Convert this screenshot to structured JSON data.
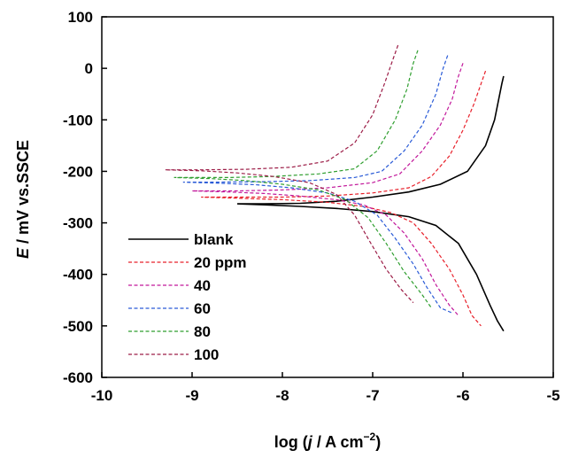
{
  "chart_data": {
    "type": "line",
    "title": "",
    "xlabel": {
      "prefix": "log (",
      "italic": "j",
      "mid": " / A cm",
      "sup": "−2",
      "suffix": ")"
    },
    "ylabel": {
      "italic": "E",
      "rest": " / mV vs.SSCE"
    },
    "xlim": [
      -10,
      -5
    ],
    "ylim": [
      -600,
      100
    ],
    "xticks": [
      "-10",
      "-9",
      "-8",
      "-7",
      "-6",
      "-5"
    ],
    "yticks": [
      "100",
      "0",
      "-100",
      "-200",
      "-300",
      "-400",
      "-500",
      "-600"
    ],
    "grid": false,
    "legend_position": "lower-left",
    "series": [
      {
        "name": "blank",
        "color": "#000000",
        "dash": "solid",
        "points": [
          [
            -5.55,
            -15
          ],
          [
            -5.57,
            -30
          ],
          [
            -5.65,
            -100
          ],
          [
            -5.75,
            -150
          ],
          [
            -5.95,
            -200
          ],
          [
            -6.25,
            -225
          ],
          [
            -6.6,
            -240
          ],
          [
            -7.0,
            -250
          ],
          [
            -7.4,
            -258
          ],
          [
            -7.8,
            -262
          ],
          [
            -8.2,
            -263
          ],
          [
            -8.5,
            -263
          ],
          [
            -8.2,
            -265
          ],
          [
            -7.8,
            -268
          ],
          [
            -7.4,
            -272
          ],
          [
            -7.0,
            -278
          ],
          [
            -6.6,
            -288
          ],
          [
            -6.3,
            -305
          ],
          [
            -6.05,
            -340
          ],
          [
            -5.85,
            -400
          ],
          [
            -5.7,
            -460
          ],
          [
            -5.62,
            -490
          ],
          [
            -5.55,
            -510
          ]
        ]
      },
      {
        "name": "20 ppm",
        "color": "#e8202a",
        "dash": "dashed",
        "points": [
          [
            -5.75,
            -5
          ],
          [
            -5.8,
            -30
          ],
          [
            -5.88,
            -70
          ],
          [
            -6.0,
            -120
          ],
          [
            -6.15,
            -170
          ],
          [
            -6.35,
            -210
          ],
          [
            -6.6,
            -232
          ],
          [
            -7.0,
            -242
          ],
          [
            -7.5,
            -248
          ],
          [
            -8.0,
            -250
          ],
          [
            -8.5,
            -250
          ],
          [
            -8.9,
            -250
          ],
          [
            -8.5,
            -252
          ],
          [
            -8.0,
            -255
          ],
          [
            -7.5,
            -260
          ],
          [
            -7.1,
            -268
          ],
          [
            -6.8,
            -280
          ],
          [
            -6.55,
            -300
          ],
          [
            -6.35,
            -340
          ],
          [
            -6.15,
            -390
          ],
          [
            -6.0,
            -440
          ],
          [
            -5.9,
            -480
          ],
          [
            -5.8,
            -500
          ]
        ]
      },
      {
        "name": "40",
        "color": "#c2189b",
        "dash": "dashed",
        "points": [
          [
            -6.0,
            10
          ],
          [
            -6.05,
            -15
          ],
          [
            -6.12,
            -60
          ],
          [
            -6.25,
            -110
          ],
          [
            -6.45,
            -160
          ],
          [
            -6.7,
            -205
          ],
          [
            -7.0,
            -222
          ],
          [
            -7.5,
            -232
          ],
          [
            -8.0,
            -236
          ],
          [
            -8.5,
            -238
          ],
          [
            -9.0,
            -238
          ],
          [
            -8.6,
            -240
          ],
          [
            -8.2,
            -243
          ],
          [
            -7.8,
            -248
          ],
          [
            -7.4,
            -255
          ],
          [
            -7.1,
            -265
          ],
          [
            -6.85,
            -285
          ],
          [
            -6.65,
            -320
          ],
          [
            -6.45,
            -370
          ],
          [
            -6.3,
            -420
          ],
          [
            -6.15,
            -460
          ],
          [
            -6.05,
            -480
          ]
        ]
      },
      {
        "name": "60",
        "color": "#2a5bd7",
        "dash": "dashed",
        "points": [
          [
            -6.17,
            25
          ],
          [
            -6.22,
            0
          ],
          [
            -6.3,
            -50
          ],
          [
            -6.45,
            -110
          ],
          [
            -6.65,
            -160
          ],
          [
            -6.9,
            -200
          ],
          [
            -7.2,
            -212
          ],
          [
            -7.7,
            -218
          ],
          [
            -8.2,
            -220
          ],
          [
            -8.7,
            -221
          ],
          [
            -9.1,
            -221
          ],
          [
            -8.7,
            -223
          ],
          [
            -8.3,
            -226
          ],
          [
            -7.9,
            -232
          ],
          [
            -7.5,
            -242
          ],
          [
            -7.2,
            -258
          ],
          [
            -6.95,
            -285
          ],
          [
            -6.75,
            -330
          ],
          [
            -6.55,
            -380
          ],
          [
            -6.4,
            -425
          ],
          [
            -6.25,
            -465
          ],
          [
            -6.12,
            -475
          ]
        ]
      },
      {
        "name": "80",
        "color": "#2e9e2e",
        "dash": "dashed",
        "points": [
          [
            -6.5,
            35
          ],
          [
            -6.55,
            10
          ],
          [
            -6.62,
            -40
          ],
          [
            -6.75,
            -100
          ],
          [
            -6.95,
            -160
          ],
          [
            -7.2,
            -195
          ],
          [
            -7.6,
            -205
          ],
          [
            -8.1,
            -210
          ],
          [
            -8.6,
            -212
          ],
          [
            -9.2,
            -212
          ],
          [
            -8.8,
            -214
          ],
          [
            -8.4,
            -218
          ],
          [
            -8.0,
            -225
          ],
          [
            -7.6,
            -236
          ],
          [
            -7.3,
            -255
          ],
          [
            -7.05,
            -290
          ],
          [
            -6.85,
            -340
          ],
          [
            -6.65,
            -395
          ],
          [
            -6.45,
            -440
          ],
          [
            -6.35,
            -465
          ]
        ]
      },
      {
        "name": "100",
        "color": "#9c1d47",
        "dash": "dashed",
        "points": [
          [
            -6.72,
            45
          ],
          [
            -6.78,
            15
          ],
          [
            -6.87,
            -30
          ],
          [
            -7.0,
            -90
          ],
          [
            -7.2,
            -145
          ],
          [
            -7.5,
            -180
          ],
          [
            -7.9,
            -192
          ],
          [
            -8.4,
            -196
          ],
          [
            -8.9,
            -197
          ],
          [
            -9.3,
            -197
          ],
          [
            -8.9,
            -199
          ],
          [
            -8.5,
            -203
          ],
          [
            -8.1,
            -210
          ],
          [
            -7.7,
            -222
          ],
          [
            -7.4,
            -245
          ],
          [
            -7.2,
            -285
          ],
          [
            -7.02,
            -340
          ],
          [
            -6.85,
            -390
          ],
          [
            -6.68,
            -430
          ],
          [
            -6.55,
            -455
          ]
        ]
      }
    ]
  }
}
